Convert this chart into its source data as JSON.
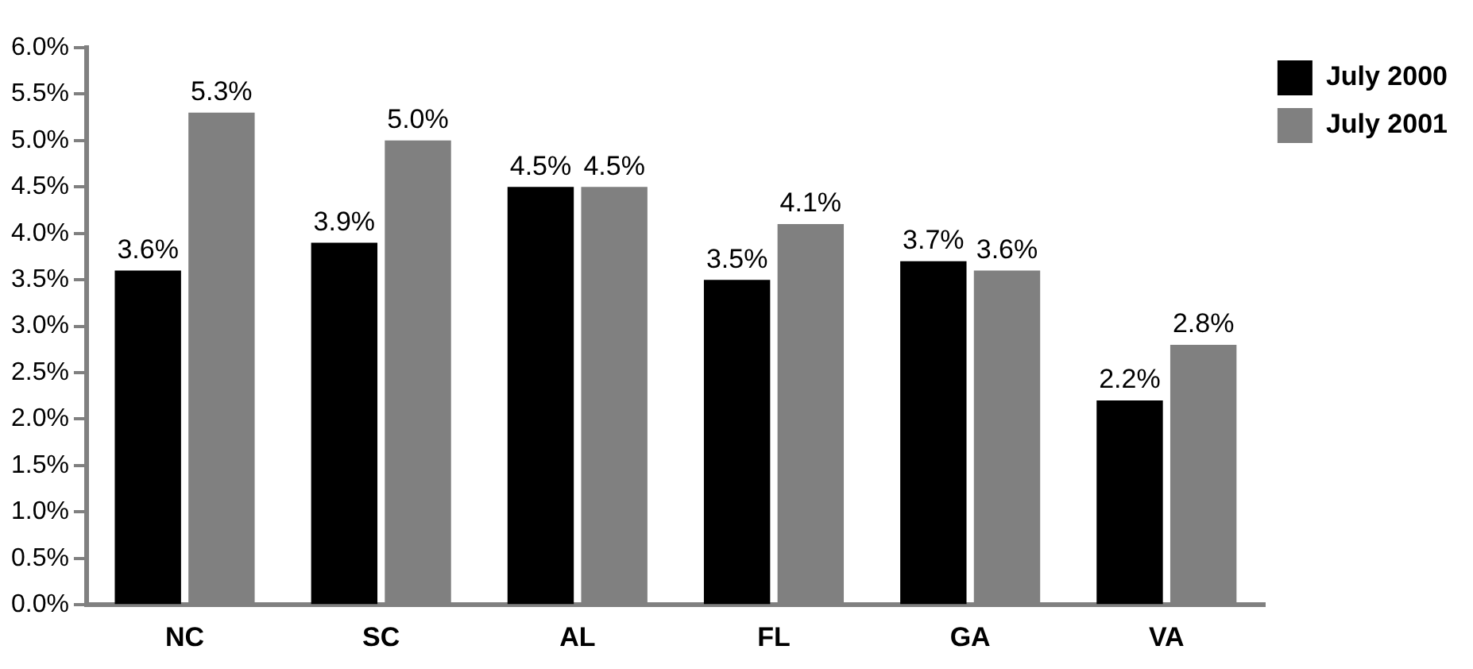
{
  "chart_data": {
    "type": "bar",
    "categories": [
      "NC",
      "SC",
      "AL",
      "FL",
      "GA",
      "VA"
    ],
    "series": [
      {
        "name": "July 2000",
        "color": "#000000",
        "values": [
          3.6,
          3.9,
          4.5,
          3.5,
          3.7,
          2.2
        ],
        "value_labels": [
          "3.6%",
          "3.9%",
          "4.5%",
          "3.5%",
          "3.7%",
          "2.2%"
        ]
      },
      {
        "name": "July 2001",
        "color": "#808080",
        "values": [
          5.3,
          5.0,
          4.5,
          4.1,
          3.6,
          2.8
        ],
        "value_labels": [
          "5.3%",
          "5.0%",
          "4.5%",
          "4.1%",
          "3.6%",
          "2.8%"
        ]
      }
    ],
    "ylim": [
      0,
      6
    ],
    "yticks": [
      {
        "value": 0,
        "label": "0.0%"
      },
      {
        "value": 0.5,
        "label": "0.5%"
      },
      {
        "value": 1,
        "label": "1.0%"
      },
      {
        "value": 1.5,
        "label": "1.5%"
      },
      {
        "value": 2,
        "label": "2.0%"
      },
      {
        "value": 2.5,
        "label": "2.5%"
      },
      {
        "value": 3,
        "label": "3.0%"
      },
      {
        "value": 3.5,
        "label": "3.5%"
      },
      {
        "value": 4,
        "label": "4.0%"
      },
      {
        "value": 4.5,
        "label": "4.5%"
      },
      {
        "value": 5,
        "label": "5.0%"
      },
      {
        "value": 5.5,
        "label": "5.5%"
      },
      {
        "value": 6,
        "label": "6.0%"
      }
    ],
    "grid": false,
    "legend": "top right"
  }
}
